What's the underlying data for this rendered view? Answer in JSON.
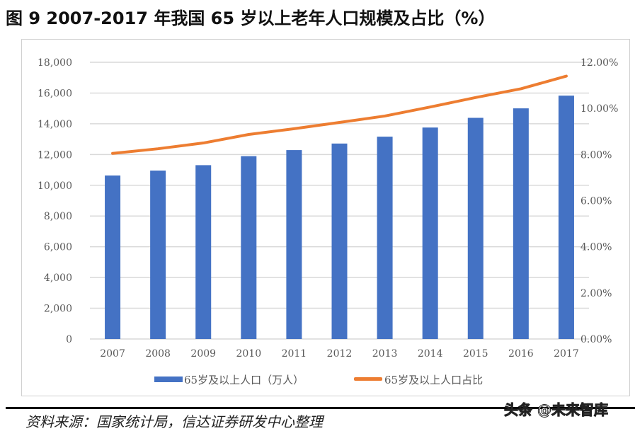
{
  "title": "图 9 2007-2017 年我国 65 岁以上老年人口规模及占比（%）",
  "source": "资料来源：国家统计局，信达证券研发中心整理",
  "watermark": "头条 @未来智库",
  "chart_data": {
    "type": "bar+line",
    "categories": [
      "2007",
      "2008",
      "2009",
      "2010",
      "2011",
      "2012",
      "2013",
      "2014",
      "2015",
      "2016",
      "2017"
    ],
    "series": [
      {
        "name": "65岁及以上人口（万人）",
        "type": "bar",
        "axis": "left",
        "color": "#4472C4",
        "values": [
          10636,
          10956,
          11307,
          11894,
          12288,
          12714,
          13161,
          13755,
          14386,
          15003,
          15831
        ]
      },
      {
        "name": "65岁及以上人口占比",
        "type": "line",
        "axis": "right",
        "color": "#ED7D31",
        "values": [
          8.05,
          8.25,
          8.5,
          8.87,
          9.12,
          9.39,
          9.67,
          10.06,
          10.47,
          10.85,
          11.4
        ]
      }
    ],
    "y_left": {
      "range": [
        0,
        18000
      ],
      "ticks": [
        "0",
        "2,000",
        "4,000",
        "6,000",
        "8,000",
        "10,000",
        "12,000",
        "14,000",
        "16,000",
        "18,000"
      ]
    },
    "y_right": {
      "range": [
        0,
        12
      ],
      "ticks": [
        "0.00%",
        "2.00%",
        "4.00%",
        "6.00%",
        "8.00%",
        "10.00%",
        "12.00%"
      ]
    },
    "grid": true,
    "legend": "bottom"
  }
}
